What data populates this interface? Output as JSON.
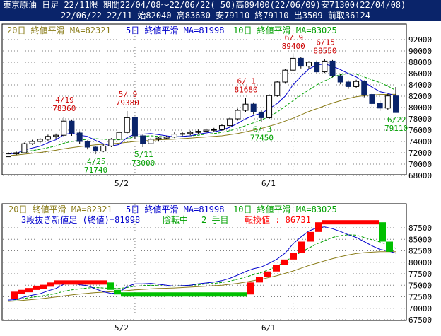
{
  "header": {
    "line1": "東京原油 日足 22/11限 期間22/04/08〜22/06/22( 50)高89400(22/06/09)安71300(22/04/08)",
    "line2": "22/06/22 22/11 始82040 高83630 安79110 終79110 出3509 前取36124"
  },
  "upper_legend": {
    "ma20": "20日 終値平滑 MA=82321",
    "ma5": "5日 終値平滑 MA=81998",
    "ma10": "10日 終値平滑 MA=83025"
  },
  "lower_legend": {
    "ma20": "20日 終値平滑 MA=82321",
    "ma5": "5日 終値平滑 MA=81998",
    "ma10": "10日 終値平滑 MA=83025",
    "info_a": "3段抜き新値足 (終値)=81998",
    "info_b": "陰転中",
    "info_c": "2 手目",
    "info_d": "転換値 : 86731"
  },
  "x_labels": [
    "5/2",
    "6/1"
  ],
  "colors": {
    "up": "#ffffff",
    "down": "#0a246a",
    "ma5": "#0000cc",
    "ma10": "#00a000",
    "ma20": "#8b7d1a",
    "red": "#ff0000",
    "green": "#00c000",
    "high_label": "#cc0000",
    "low_label": "#00a000"
  },
  "chart_data": [
    {
      "type": "candlestick",
      "title": "",
      "ylim": [
        68000,
        92000
      ],
      "yticks": [
        68000,
        70000,
        72000,
        74000,
        76000,
        78000,
        80000,
        82000,
        84000,
        86000,
        88000,
        90000,
        92000
      ],
      "annotations": [
        {
          "text": "4/19",
          "value": "78360",
          "idx": 7,
          "pos": "high"
        },
        {
          "text": "4/25",
          "value": "71740",
          "idx": 11,
          "pos": "low"
        },
        {
          "text": "5/ 9",
          "value": "79380",
          "idx": 15,
          "pos": "high"
        },
        {
          "text": "5/11",
          "value": "73000",
          "idx": 17,
          "pos": "low"
        },
        {
          "text": "6/ 1",
          "value": "81680",
          "idx": 30,
          "pos": "high"
        },
        {
          "text": "6/ 3",
          "value": "77450",
          "idx": 32,
          "pos": "low"
        },
        {
          "text": "6/ 9",
          "value": "89400",
          "idx": 36,
          "pos": "high"
        },
        {
          "text": "6/15",
          "value": "88550",
          "idx": 40,
          "pos": "high"
        },
        {
          "text": "6/22",
          "value": "79110",
          "idx": 49,
          "pos": "low"
        }
      ],
      "candles": [
        [
          71300,
          71900,
          71300,
          71800
        ],
        [
          71800,
          72200,
          71600,
          72000
        ],
        [
          72000,
          73800,
          71900,
          73600
        ],
        [
          73600,
          74300,
          73400,
          74000
        ],
        [
          74000,
          74600,
          73700,
          74400
        ],
        [
          74400,
          75200,
          74100,
          74900
        ],
        [
          74900,
          75400,
          74500,
          75100
        ],
        [
          75100,
          78360,
          74800,
          77600
        ],
        [
          77600,
          77900,
          75000,
          75500
        ],
        [
          75500,
          75800,
          73500,
          74000
        ],
        [
          74000,
          74200,
          72600,
          73000
        ],
        [
          73000,
          73200,
          71740,
          72300
        ],
        [
          72300,
          73500,
          72100,
          73200
        ],
        [
          73200,
          74600,
          73000,
          74400
        ],
        [
          74400,
          75800,
          74200,
          75600
        ],
        [
          75600,
          79380,
          75400,
          78200
        ],
        [
          78200,
          78400,
          74500,
          75000
        ],
        [
          75000,
          75200,
          73000,
          73600
        ],
        [
          73600,
          74600,
          73500,
          74400
        ],
        [
          74400,
          74800,
          74000,
          74600
        ],
        [
          74600,
          75000,
          74400,
          74800
        ],
        [
          74800,
          75600,
          74600,
          75300
        ],
        [
          75300,
          75700,
          75000,
          75400
        ],
        [
          75400,
          75900,
          75100,
          75600
        ],
        [
          75600,
          76100,
          75300,
          75800
        ],
        [
          75800,
          76300,
          75500,
          76000
        ],
        [
          76000,
          76400,
          75700,
          76100
        ],
        [
          76100,
          77000,
          75900,
          76800
        ],
        [
          76800,
          78200,
          76500,
          78000
        ],
        [
          78000,
          79800,
          77700,
          79500
        ],
        [
          79500,
          81680,
          79200,
          80600
        ],
        [
          80600,
          80900,
          78800,
          79200
        ],
        [
          79200,
          79500,
          77450,
          78200
        ],
        [
          78200,
          82300,
          78000,
          82100
        ],
        [
          82100,
          84700,
          81900,
          84500
        ],
        [
          84500,
          86800,
          84200,
          86600
        ],
        [
          86600,
          89400,
          86400,
          88700
        ],
        [
          88700,
          88900,
          86900,
          87300
        ],
        [
          87300,
          88200,
          86800,
          88000
        ],
        [
          88000,
          88300,
          85900,
          86300
        ],
        [
          86300,
          88550,
          86100,
          88200
        ],
        [
          88200,
          88400,
          85300,
          85600
        ],
        [
          85600,
          85900,
          84100,
          84500
        ],
        [
          84500,
          84800,
          83300,
          83700
        ],
        [
          83700,
          84900,
          83500,
          84600
        ],
        [
          84600,
          84800,
          81800,
          82300
        ],
        [
          82300,
          82600,
          80100,
          80700
        ],
        [
          80700,
          81200,
          79400,
          79900
        ],
        [
          79900,
          82400,
          79600,
          82040
        ],
        [
          82040,
          83630,
          79110,
          79110
        ]
      ],
      "ma5": [
        71800,
        71900,
        72470,
        72850,
        73160,
        73780,
        74300,
        75200,
        75500,
        75100,
        74900,
        74200,
        73600,
        73200,
        73450,
        74700,
        75300,
        75300,
        75400,
        75200,
        75000,
        74800,
        74900,
        75000,
        75300,
        75500,
        75700,
        76000,
        76500,
        77200,
        78000,
        78600,
        79000,
        79800,
        80700,
        82000,
        84000,
        85500,
        86800,
        87500,
        87700,
        87300,
        86700,
        86000,
        85400,
        84500,
        83600,
        82800,
        82500,
        81998
      ],
      "ma10": [
        71800,
        71850,
        72150,
        72400,
        72600,
        72900,
        73200,
        73700,
        74000,
        74200,
        74400,
        74500,
        74400,
        74300,
        74300,
        74500,
        74800,
        74900,
        75000,
        74900,
        74800,
        74800,
        74900,
        75000,
        75100,
        75300,
        75400,
        75600,
        75900,
        76300,
        76800,
        77300,
        77800,
        78400,
        79200,
        80200,
        81200,
        82200,
        83100,
        84000,
        84700,
        85400,
        85800,
        86000,
        85900,
        85400,
        84900,
        84400,
        83800,
        83025
      ],
      "ma20": [
        71500,
        71600,
        71750,
        71900,
        72050,
        72250,
        72450,
        72700,
        72900,
        73100,
        73250,
        73400,
        73500,
        73600,
        73700,
        73850,
        74000,
        74100,
        74200,
        74300,
        74350,
        74400,
        74500,
        74600,
        74700,
        74800,
        74900,
        75000,
        75200,
        75400,
        75700,
        76000,
        76300,
        76700,
        77100,
        77600,
        78100,
        78700,
        79300,
        79800,
        80300,
        80800,
        81200,
        81600,
        81900,
        82100,
        82200,
        82300,
        82320,
        82321
      ]
    },
    {
      "type": "new-price-bars",
      "title": "",
      "ylim": [
        67500,
        87500
      ],
      "yticks": [
        67500,
        70000,
        72500,
        75000,
        77500,
        80000,
        82500,
        85000,
        87500
      ],
      "bars": [
        {
          "from": 72000,
          "to": 73600,
          "color": "red"
        },
        {
          "from": 73600,
          "to": 74000,
          "color": "red"
        },
        {
          "from": 74000,
          "to": 74400,
          "color": "red"
        },
        {
          "from": 74400,
          "to": 74900,
          "color": "red"
        },
        {
          "from": 74900,
          "to": 75100,
          "color": "red"
        },
        {
          "from": 75100,
          "to": 75600,
          "color": "red"
        },
        {
          "from": 75600,
          "to": 74000,
          "color": "green"
        },
        {
          "from": 74000,
          "to": 73000,
          "color": "green"
        },
        {
          "from": 73000,
          "to": 75600,
          "color": "red"
        },
        {
          "from": 75600,
          "to": 76800,
          "color": "red"
        },
        {
          "from": 76800,
          "to": 78000,
          "color": "red"
        },
        {
          "from": 78000,
          "to": 79500,
          "color": "red"
        },
        {
          "from": 79500,
          "to": 80600,
          "color": "red"
        },
        {
          "from": 80600,
          "to": 82100,
          "color": "red"
        },
        {
          "from": 82100,
          "to": 84500,
          "color": "red"
        },
        {
          "from": 84500,
          "to": 86600,
          "color": "red"
        },
        {
          "from": 86600,
          "to": 88700,
          "color": "red"
        },
        {
          "from": 88700,
          "to": 84500,
          "color": "green"
        },
        {
          "from": 84500,
          "to": 82300,
          "color": "green"
        }
      ]
    }
  ]
}
